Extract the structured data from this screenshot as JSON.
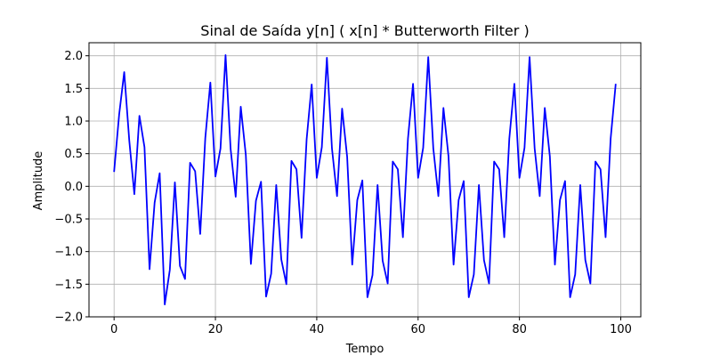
{
  "chart_data": {
    "type": "line",
    "title": "Sinal de Saída y[n] ( x[n] * Butterworth Filter )",
    "xlabel": "Tempo",
    "ylabel": "Amplitude",
    "xlim": [
      -4.95,
      103.95
    ],
    "ylim": [
      -2.0,
      2.2
    ],
    "xticks": [
      0,
      20,
      40,
      60,
      80,
      100
    ],
    "yticks": [
      -2.0,
      -1.5,
      -1.0,
      -0.5,
      0.0,
      0.5,
      1.0,
      1.5,
      2.0
    ],
    "xtick_labels": [
      "0",
      "20",
      "40",
      "60",
      "80",
      "100"
    ],
    "ytick_labels": [
      "−2.0",
      "−1.5",
      "−1.0",
      "−0.5",
      "0.0",
      "0.5",
      "1.0",
      "1.5",
      "2.0"
    ],
    "grid": true,
    "series": [
      {
        "color": "#0000ff",
        "x": [
          0,
          1,
          2,
          3,
          4,
          5,
          6,
          7,
          8,
          9,
          10,
          11,
          12,
          13,
          14,
          15,
          16,
          17,
          18,
          19,
          20,
          21,
          22,
          23,
          24,
          25,
          26,
          27,
          28,
          29,
          30,
          31,
          32,
          33,
          34,
          35,
          36,
          37,
          38,
          39,
          40,
          41,
          42,
          43,
          44,
          45,
          46,
          47,
          48,
          49,
          50,
          51,
          52,
          53,
          54,
          55,
          56,
          57,
          58,
          59,
          60,
          61,
          62,
          63,
          64,
          65,
          66,
          67,
          68,
          69,
          70,
          71,
          72,
          73,
          74,
          75,
          76,
          77,
          78,
          79,
          80,
          81,
          82,
          83,
          84,
          85,
          86,
          87,
          88,
          89,
          90,
          91,
          92,
          93,
          94,
          95,
          96,
          97,
          98,
          99
        ],
        "y": [
          0.22,
          1.1,
          1.75,
          0.7,
          -0.12,
          1.08,
          0.6,
          -1.27,
          -0.25,
          0.2,
          -1.81,
          -1.28,
          0.06,
          -1.22,
          -1.42,
          0.36,
          0.23,
          -0.73,
          0.74,
          1.59,
          0.15,
          0.58,
          2.01,
          0.57,
          -0.16,
          1.22,
          0.48,
          -1.19,
          -0.22,
          0.07,
          -1.69,
          -1.34,
          0.02,
          -1.12,
          -1.5,
          0.39,
          0.26,
          -0.79,
          0.72,
          1.56,
          0.13,
          0.6,
          1.97,
          0.58,
          -0.15,
          1.19,
          0.45,
          -1.2,
          -0.21,
          0.09,
          -1.7,
          -1.36,
          0.02,
          -1.14,
          -1.49,
          0.38,
          0.26,
          -0.78,
          0.73,
          1.57,
          0.13,
          0.59,
          1.98,
          0.58,
          -0.15,
          1.2,
          0.46,
          -1.2,
          -0.21,
          0.08,
          -1.7,
          -1.35,
          0.02,
          -1.13,
          -1.49,
          0.38,
          0.26,
          -0.78,
          0.73,
          1.57,
          0.13,
          0.59,
          1.98,
          0.58,
          -0.15,
          1.2,
          0.46,
          -1.2,
          -0.21,
          0.08,
          -1.7,
          -1.35,
          0.02,
          -1.13,
          -1.49,
          0.38,
          0.26,
          -0.78,
          0.73,
          1.57
        ]
      }
    ]
  }
}
